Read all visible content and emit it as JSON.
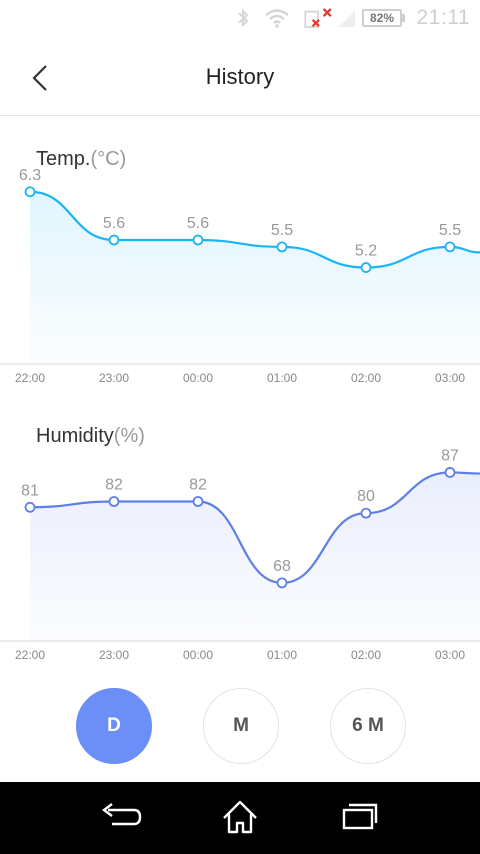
{
  "status_bar": {
    "battery": "82%",
    "time": "21:11",
    "icons": [
      "bluetooth-icon",
      "wifi-icon",
      "sim-no-signal-icon",
      "signal-icon"
    ]
  },
  "header": {
    "title": "History",
    "back_icon": "chevron-left-icon"
  },
  "charts": {
    "temp": {
      "title": "Temp.",
      "unit": "(°C)"
    },
    "humidity": {
      "title": "Humidity",
      "unit": "(%)"
    }
  },
  "chart_data": [
    {
      "type": "area",
      "title": "Temp.(°C)",
      "categories": [
        "22:00",
        "23:00",
        "00:00",
        "01:00",
        "02:00",
        "03:00"
      ],
      "series": [
        {
          "values": [
            6.3,
            5.6,
            5.6,
            5.5,
            5.2,
            5.5
          ]
        }
      ],
      "ylim": [
        3.8,
        6.5
      ],
      "color": "#1ab5f5"
    },
    {
      "type": "area",
      "title": "Humidity(%)",
      "categories": [
        "22:00",
        "23:00",
        "00:00",
        "01:00",
        "02:00",
        "03:00"
      ],
      "series": [
        {
          "values": [
            81,
            82,
            82,
            68,
            80,
            87
          ]
        }
      ],
      "ylim": [
        58,
        90
      ],
      "color": "#5d7fe6"
    }
  ],
  "range_buttons": [
    {
      "label": "D",
      "active": true
    },
    {
      "label": "M",
      "active": false
    },
    {
      "label": "6 M",
      "active": false
    }
  ],
  "nav_bar": {
    "icons": [
      "back-icon",
      "home-icon",
      "recent-apps-icon"
    ]
  }
}
